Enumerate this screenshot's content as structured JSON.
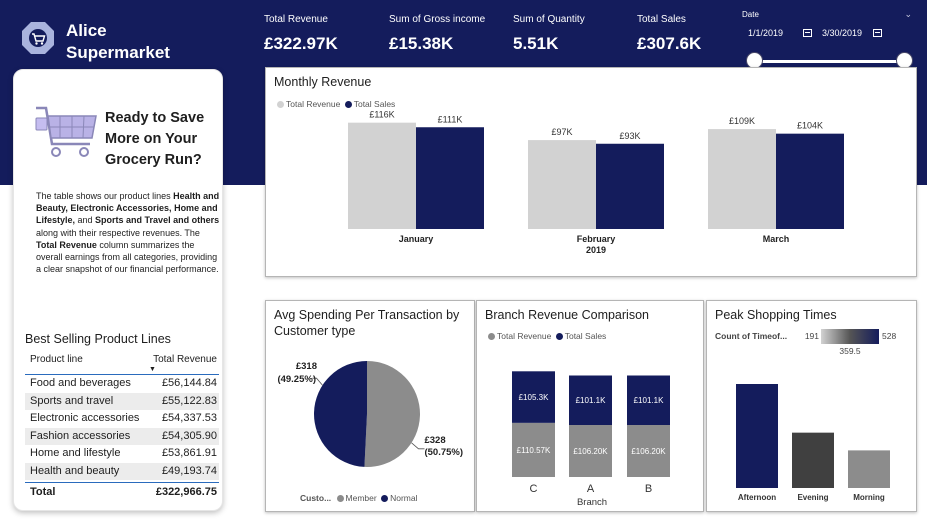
{
  "brand": {
    "name_line1": "Alice",
    "name_line2": "Supermarket"
  },
  "kpis": [
    {
      "label": "Total Revenue",
      "value": "£322.97K"
    },
    {
      "label": "Sum of Gross income",
      "value": "£15.38K"
    },
    {
      "label": "Sum of Quantity",
      "value": "5.51K"
    },
    {
      "label": "Total Sales",
      "value": "£307.6K"
    }
  ],
  "date_filter": {
    "title": "Date",
    "start": "1/1/2019",
    "end": "3/30/2019",
    "range_selected": [
      0,
      1
    ]
  },
  "promo": {
    "title": "Ready to Save More on Your Grocery Run?",
    "text_parts": [
      {
        "t": "The table shows our product lines ",
        "b": false
      },
      {
        "t": "Health and Beauty, Electronic Accessories, Home and Lifestyle,",
        "b": true
      },
      {
        "t": " and ",
        "b": false
      },
      {
        "t": "Sports and Travel and others",
        "b": true
      },
      {
        "t": " along with their respective revenues. The ",
        "b": false
      },
      {
        "t": "Total Revenue",
        "b": true
      },
      {
        "t": " column summarizes the overall earnings from all categories, providing a clear snapshot of our financial performance.",
        "b": false
      }
    ]
  },
  "product_table": {
    "title": "Best Selling Product Lines",
    "headers": [
      "Product line",
      "Total Revenue"
    ],
    "rows": [
      [
        "Food and beverages",
        "£56,144.84"
      ],
      [
        "Sports and travel",
        "£55,122.83"
      ],
      [
        "Electronic accessories",
        "£54,337.53"
      ],
      [
        "Fashion accessories",
        "£54,305.90"
      ],
      [
        "Home and lifestyle",
        "£53,861.91"
      ],
      [
        "Health and beauty",
        "£49,193.74"
      ]
    ],
    "total_label": "Total",
    "total_value": "£322,966.75"
  },
  "colors": {
    "navy": "#141c5c",
    "light_gray": "#d2d2d2",
    "mid_gray": "#8c8c8c",
    "dark_gray": "#404040"
  },
  "chart_data": [
    {
      "type": "bar",
      "title": "Monthly Revenue",
      "categories": [
        "January",
        "February",
        "March"
      ],
      "category_sublabels": [
        "",
        "2019",
        ""
      ],
      "series": [
        {
          "name": "Total Revenue",
          "values": [
            116,
            97,
            109
          ],
          "labels": [
            "£116K",
            "£97K",
            "£109K"
          ],
          "color": "#d2d2d2"
        },
        {
          "name": "Total Sales",
          "values": [
            111,
            93,
            104
          ],
          "labels": [
            "£111K",
            "£93K",
            "£104K"
          ],
          "color": "#141c5c"
        }
      ],
      "ylim": [
        0,
        120
      ],
      "legend": "top-left",
      "grid": false
    },
    {
      "type": "pie",
      "title": "Avg Spending Per Transaction by Customer type",
      "legend_title": "Custo...",
      "slices": [
        {
          "name": "Member",
          "value": 328,
          "label": "£328",
          "pct": "(50.75%)",
          "color": "#8c8c8c"
        },
        {
          "name": "Normal",
          "value": 318,
          "label": "£318",
          "pct": "(49.25%)",
          "color": "#141c5c"
        }
      ],
      "legend": "bottom"
    },
    {
      "type": "bar",
      "stacked": true,
      "title": "Branch Revenue Comparison",
      "xlabel": "Branch",
      "categories": [
        "C",
        "A",
        "B"
      ],
      "series": [
        {
          "name": "Total Revenue",
          "values": [
            110.57,
            106.2,
            106.2
          ],
          "labels": [
            "£110.57K",
            "£106.20K",
            "£106.20K"
          ],
          "color": "#8c8c8c"
        },
        {
          "name": "Total Sales",
          "values": [
            105.3,
            101.1,
            101.1
          ],
          "labels": [
            "£105.3K",
            "£101.1K",
            "£101.1K"
          ],
          "color": "#141c5c"
        }
      ],
      "legend": "top-left",
      "grid": false
    },
    {
      "type": "bar",
      "title": "Peak Shopping Times",
      "legend_title": "Count of Timeof...",
      "color_scale": {
        "min": 191,
        "max": 528,
        "mid": 359.5,
        "min_label": "191",
        "max_label": "528",
        "mid_label": "359.5"
      },
      "categories": [
        "Afternoon",
        "Evening",
        "Morning"
      ],
      "values": [
        528,
        281,
        191
      ],
      "colors": [
        "#141c5c",
        "#404040",
        "#8c8c8c"
      ],
      "grid": false
    }
  ]
}
